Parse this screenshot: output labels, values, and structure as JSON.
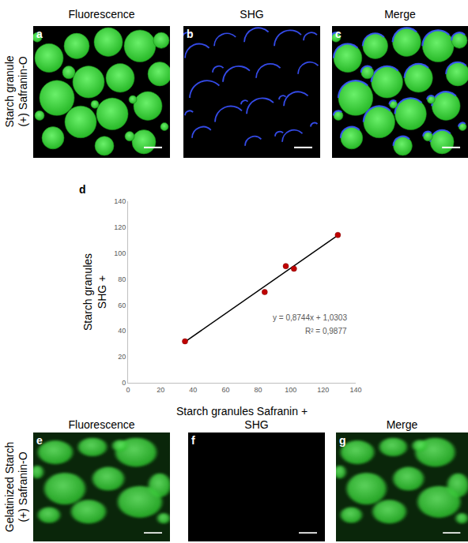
{
  "chart_data": {
    "type": "scatter",
    "panel": "d",
    "xlabel": "Starch granules Safranin +",
    "ylabel": [
      "Starch granules",
      "SHG +"
    ],
    "x": [
      35,
      84,
      97,
      102,
      129
    ],
    "values": [
      32,
      70,
      90,
      88,
      114
    ],
    "color": "#c00000",
    "marker": "circle",
    "trendline": {
      "x": [
        35,
        129
      ],
      "values": [
        31.6,
        113.8
      ],
      "color": "#000000",
      "line_style": "solid"
    },
    "annotations": [
      "y = 0,8744x + 1,0303",
      "R² = 0,9877"
    ],
    "xlim": [
      0,
      140
    ],
    "xticks": [
      0,
      20,
      40,
      60,
      80,
      100,
      120,
      140
    ],
    "ylim": [
      0,
      140
    ],
    "yticks": [
      0,
      20,
      40,
      60,
      80,
      100,
      120,
      140
    ],
    "grid": false
  },
  "figure": {
    "columns": [
      "Fluorescence",
      "SHG",
      "Merge"
    ],
    "rows": [
      {
        "label": [
          "Starch granule",
          "(+) Safranin-O"
        ],
        "panels": [
          "a",
          "b",
          "c"
        ]
      },
      {
        "label": [
          "Gelatinized Starch",
          "(+) Safranin-O"
        ],
        "panels": [
          "e",
          "f",
          "g"
        ]
      }
    ]
  }
}
